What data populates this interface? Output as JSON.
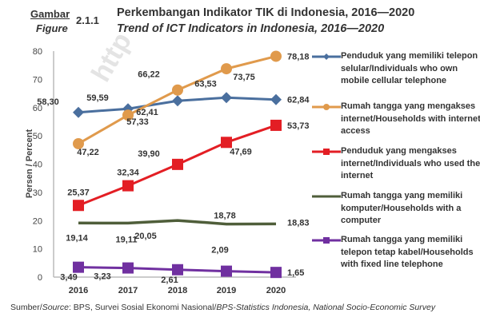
{
  "header": {
    "gambar": "Gambar",
    "figure": "Figure",
    "number": "2.1.1",
    "title_id": "Perkembangan Indikator TIK di Indonesia, 2016—2020",
    "title_en": "Trend of ICT Indicators in Indonesia, 2016—2020"
  },
  "watermark": "http",
  "source": {
    "prefix": "Sumber/",
    "prefix_italic": "Source",
    "text": ": BPS, Survei Sosial Ekonomi Nasional/",
    "text_italic": "BPS-Statistics Indonesia, National Socio-Economic Survey"
  },
  "chart_data": {
    "type": "line",
    "title": "Trend of ICT Indicators in Indonesia, 2016—2020",
    "xlabel": "",
    "ylabel": "Persen / Percent",
    "x": [
      "2016",
      "2017",
      "2018",
      "2019",
      "2020"
    ],
    "ylim": [
      0,
      80
    ],
    "yticks": [
      "0",
      "10",
      "20",
      "30",
      "40",
      "50",
      "60",
      "70",
      "80"
    ],
    "grid": false,
    "legend_position": "right",
    "series": [
      {
        "name": "Penduduk yang memiliki telepon selular/Individuals who own mobile cellular telephone",
        "color": "#4a6f9e",
        "marker": "diamond",
        "values": [
          58.3,
          59.59,
          62.41,
          63.53,
          62.84
        ],
        "labels": [
          "58,30",
          "59,59",
          "62,41",
          "63,53",
          "62,84"
        ]
      },
      {
        "name": "Rumah tangga yang mengakses internet/Households with internet access",
        "color": "#e09a4c",
        "marker": "circle",
        "values": [
          47.22,
          57.33,
          66.22,
          73.75,
          78.18
        ],
        "labels": [
          "47,22",
          "57,33",
          "66,22",
          "73,75",
          "78,18"
        ]
      },
      {
        "name": "Penduduk yang mengakses internet/Individuals who used the internet",
        "color": "#e31e24",
        "marker": "square",
        "values": [
          25.37,
          32.34,
          39.9,
          47.69,
          53.73
        ],
        "labels": [
          "25,37",
          "32,34",
          "39,90",
          "47,69",
          "53,73"
        ]
      },
      {
        "name": "Rumah tangga yang memiliki komputer/Households with a computer",
        "color": "#4f5e3a",
        "marker": "none",
        "values": [
          19.14,
          19.11,
          20.05,
          18.78,
          18.83
        ],
        "labels": [
          "19,14",
          "19,11",
          "20,05",
          "18,78",
          "18,83"
        ]
      },
      {
        "name": "Rumah tangga yang memiliki telepon tetap kabel/Households with fixed line telephone",
        "color": "#7030a0",
        "marker": "square",
        "values": [
          3.49,
          3.23,
          2.61,
          2.09,
          1.65
        ],
        "labels": [
          "3,49",
          "3,23",
          "2,61",
          "2,09",
          "1,65"
        ]
      }
    ]
  }
}
